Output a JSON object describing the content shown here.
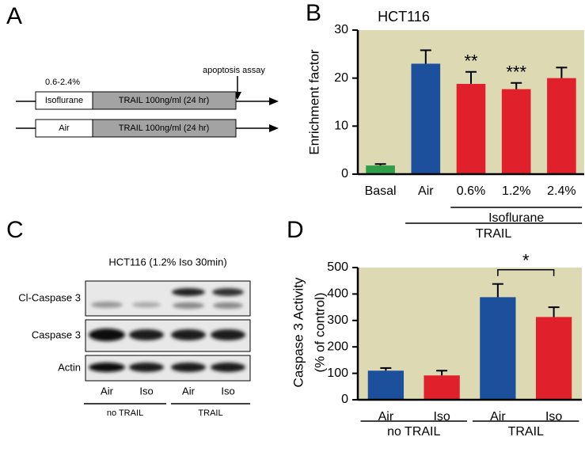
{
  "panel_labels": [
    "A",
    "B",
    "C",
    "D"
  ],
  "diagram": {
    "dose": "0.6-2.4%",
    "assay": "apoptosis assay",
    "rows": [
      {
        "pretreatment": "Isoflurane",
        "treatment": "TRAIL 100ng/ml (24 hr)"
      },
      {
        "pretreatment": "Air",
        "treatment": "TRAIL 100ng/ml (24 hr)"
      }
    ]
  },
  "blot": {
    "title": "HCT116 (1.2% Iso 30min)",
    "rows": [
      "Cl-Caspase 3",
      "Caspase 3",
      "Actin"
    ],
    "lanes": [
      "Air",
      "Iso",
      "Air",
      "Iso"
    ],
    "groups": [
      "no TRAIL",
      "TRAIL"
    ]
  },
  "chart_data": [
    {
      "type": "bar",
      "title": "HCT116",
      "y_label": [
        "Enrichment factor"
      ],
      "categories": [
        "Basal",
        "Air",
        "0.6%",
        "1.2%",
        "2.4%"
      ],
      "values": [
        1.8,
        23,
        18.8,
        17.7,
        20
      ],
      "errors": [
        0.3,
        2.8,
        2.5,
        1.3,
        2.2
      ],
      "colors": [
        "#2e9e48",
        "#1c4f9c",
        "#e0202a",
        "#e0202a",
        "#e0202a"
      ],
      "annotations": [
        null,
        null,
        "**",
        "***",
        null
      ],
      "groups": [
        {
          "label": "Isoflurane",
          "span": [
            2,
            4
          ]
        },
        {
          "label": "TRAIL",
          "span": [
            1,
            4
          ]
        }
      ],
      "ylim": [
        0,
        30
      ],
      "yticks": [
        0,
        10,
        20,
        30
      ],
      "background": "#ddd9b3"
    },
    {
      "type": "bar",
      "y_label": [
        "Caspase 3 Activity",
        "(% of control)"
      ],
      "categories": [
        "Air",
        "Iso",
        "Air",
        "Iso"
      ],
      "values": [
        110,
        92,
        388,
        313
      ],
      "errors": [
        10,
        18,
        50,
        37
      ],
      "colors": [
        "#1c4f9c",
        "#e0202a",
        "#1c4f9c",
        "#e0202a"
      ],
      "significance": [
        {
          "label": "*",
          "between": [
            2,
            3
          ]
        }
      ],
      "groups": [
        {
          "label": "no TRAIL",
          "span": [
            0,
            1
          ]
        },
        {
          "label": "TRAIL",
          "span": [
            2,
            3
          ]
        }
      ],
      "ylim": [
        0,
        500
      ],
      "yticks": [
        0,
        100,
        200,
        300,
        400,
        500
      ],
      "background": "#ddd9b3"
    }
  ]
}
